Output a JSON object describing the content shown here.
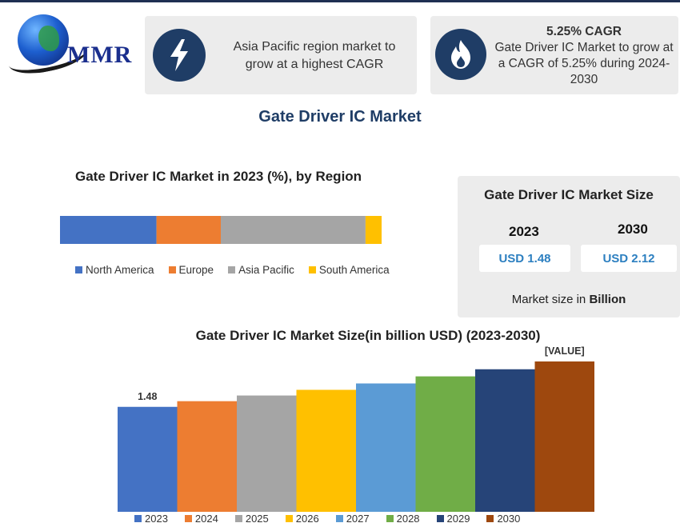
{
  "brand": {
    "logo_text": "MMR"
  },
  "card1": {
    "icon": "lightning-bolt-icon",
    "text": "Asia Pacific region market to grow at a highest CAGR"
  },
  "card2": {
    "icon": "flame-icon",
    "title": "5.25% CAGR",
    "text": "Gate Driver IC Market to grow at a CAGR of 5.25% during 2024-2030"
  },
  "main_title": "Gate Driver IC Market",
  "colors": {
    "north_america": "#4472c4",
    "europe": "#ed7d31",
    "asia_pacific": "#a5a5a5",
    "south_america": "#ffc000",
    "accent": "#1f3d66",
    "value_blue": "#2c7fc0"
  },
  "market_size": {
    "title": "Gate Driver IC Market Size",
    "year1": "2023",
    "year2": "2030",
    "value1": "USD 1.48",
    "value2": "USD 2.12",
    "note_prefix": "Market size in ",
    "note_bold": "Billion"
  },
  "chart_data": [
    {
      "type": "bar",
      "orientation": "horizontal-stacked",
      "title": "Gate Driver IC Market in 2023 (%), by Region",
      "series": [
        {
          "name": "North America",
          "value": 30,
          "color": "#4472c4"
        },
        {
          "name": "Europe",
          "value": 20,
          "color": "#ed7d31"
        },
        {
          "name": "Asia Pacific",
          "value": 45,
          "color": "#a5a5a5"
        },
        {
          "name": "South America",
          "value": 5,
          "color": "#ffc000"
        }
      ],
      "legend": "bottom"
    },
    {
      "type": "bar",
      "title": "Gate Driver IC Market Size(in billion USD) (2023-2030)",
      "categories": [
        "2023",
        "2024",
        "2025",
        "2026",
        "2027",
        "2028",
        "2029",
        "2030"
      ],
      "values": [
        1.48,
        1.56,
        1.64,
        1.72,
        1.81,
        1.91,
        2.01,
        2.12
      ],
      "colors": [
        "#4472c4",
        "#ed7d31",
        "#a5a5a5",
        "#ffc000",
        "#5b9bd5",
        "#70ad47",
        "#264478",
        "#9e480e"
      ],
      "data_labels": [
        "1.48",
        "",
        "",
        "",
        "",
        "",
        "",
        "[VALUE]"
      ],
      "ylim": [
        0,
        2.12
      ],
      "legend": "bottom"
    }
  ]
}
